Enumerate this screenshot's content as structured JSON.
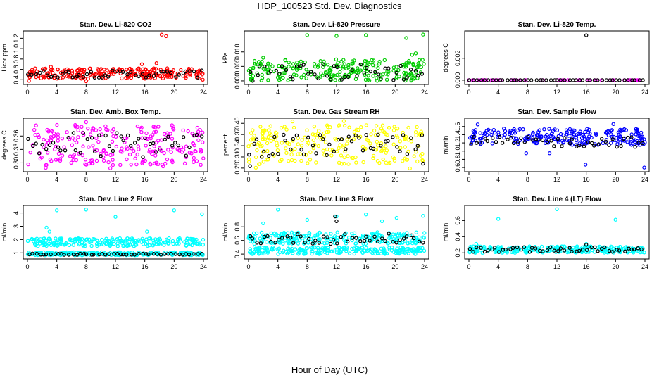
{
  "figure": {
    "title": "HDP_100523  Std. Dev. Diagnostics",
    "xlabel": "Hour of Day (UTC)"
  },
  "chart_data": [
    {
      "type": "scatter",
      "title": "Stan. Dev. Li-820 CO2",
      "xlabel": "",
      "ylabel": "Licor ppm",
      "xlim": [
        0,
        24
      ],
      "xticks": [
        "0",
        "4",
        "8",
        "12",
        "16",
        "20",
        "24"
      ],
      "ylim": [
        0.35,
        1.3
      ],
      "yticks": [
        "0.4",
        "0.6",
        "0.8",
        "1.0",
        "1.2"
      ],
      "color": "#ff0000",
      "series": [
        {
          "name": "all",
          "color": "#ff0000",
          "band": [
            0.42,
            0.62
          ],
          "x": [
            18.3,
            18.9,
            17.6,
            15.6,
            8.0,
            0.2,
            3.2,
            23.9
          ],
          "y": [
            1.27,
            1.24,
            0.72,
            0.7,
            0.37,
            0.38,
            0.65,
            0.4
          ]
        },
        {
          "name": "hourly",
          "color": "#000000",
          "band": [
            0.44,
            0.58
          ],
          "x": [],
          "y": []
        }
      ]
    },
    {
      "type": "scatter",
      "title": "Stan. Dev. Li-820 Pressure",
      "xlabel": "",
      "ylabel": "kPa",
      "xlim": [
        0,
        24
      ],
      "xticks": [
        "0",
        "4",
        "8",
        "12",
        "16",
        "20",
        "24"
      ],
      "ylim": [
        -0.0005,
        0.0165
      ],
      "yticks": [
        "0.000",
        "0.005",
        "0.010"
      ],
      "color": "#00cc00",
      "series": [
        {
          "name": "all",
          "color": "#00cc00",
          "band": [
            0.0,
            0.0075
          ],
          "x": [
            8.0,
            12.0,
            16.0,
            21.5,
            23.8,
            22.3,
            22.8,
            2.0
          ],
          "y": [
            0.0158,
            0.0155,
            0.0158,
            0.0148,
            0.016,
            0.009,
            0.0095,
            0.008
          ]
        },
        {
          "name": "hourly",
          "color": "#000000",
          "band": [
            0.0,
            0.006
          ],
          "x": [],
          "y": []
        }
      ]
    },
    {
      "type": "scatter",
      "title": "Stan. Dev. Li-820 Temp.",
      "xlabel": "",
      "ylabel": "degrees C",
      "xlim": [
        0,
        24
      ],
      "xticks": [
        "0",
        "4",
        "8",
        "12",
        "16",
        "20",
        "24"
      ],
      "ylim": [
        -0.0002,
        0.0043
      ],
      "yticks": [
        "0.000",
        "0.002"
      ],
      "color": "#ff00ff",
      "series": [
        {
          "name": "all",
          "color": "#ff00ff",
          "band": [
            0.0,
            0.0
          ],
          "x": [
            0.0
          ],
          "y": [
            0.0
          ]
        },
        {
          "name": "hourly",
          "color": "#000000",
          "band": [
            0.0,
            0.0
          ],
          "x": [
            16.0
          ],
          "y": [
            0.0041
          ]
        }
      ]
    },
    {
      "type": "scatter",
      "title": "Stan. Dev. Amb. Box Temp.",
      "xlabel": "",
      "ylabel": "degrees C",
      "xlim": [
        0,
        24
      ],
      "xticks": [
        "0",
        "4",
        "8",
        "12",
        "16",
        "20",
        "24"
      ],
      "ylim": [
        0.285,
        0.395
      ],
      "yticks": [
        "0.30",
        "0.33",
        "0.36"
      ],
      "color": "#ff00ff",
      "series": [
        {
          "name": "all",
          "color": "#ff00ff",
          "band": [
            0.295,
            0.385
          ],
          "x": [
            8.0,
            2.5,
            11.3,
            18.5
          ],
          "y": [
            0.391,
            0.289,
            0.288,
            0.292
          ]
        },
        {
          "name": "hourly",
          "color": "#000000",
          "band": [
            0.31,
            0.37
          ],
          "x": [],
          "y": []
        }
      ]
    },
    {
      "type": "scatter",
      "title": "Stan. Dev. Gas Stream RH",
      "xlabel": "",
      "ylabel": "percent",
      "xlim": [
        0,
        24
      ],
      "xticks": [
        "0",
        "4",
        "8",
        "12",
        "16",
        "20",
        "24"
      ],
      "ylim": [
        0.276,
        0.408
      ],
      "yticks": [
        "0.28",
        "0.31",
        "0.34",
        "0.37",
        "0.40"
      ],
      "color": "#ffff00",
      "series": [
        {
          "name": "all",
          "color": "#ffff00",
          "band": [
            0.29,
            0.395
          ],
          "x": [
            6.0,
            13.0,
            1.0,
            22.0
          ],
          "y": [
            0.405,
            0.406,
            0.281,
            0.279
          ]
        },
        {
          "name": "hourly",
          "color": "#000000",
          "band": [
            0.31,
            0.37
          ],
          "x": [
            0.2,
            23.8
          ],
          "y": [
            0.285,
            0.292
          ]
        }
      ]
    },
    {
      "type": "scatter",
      "title": "Stan. Dev. Sample Flow",
      "xlabel": "",
      "ylabel": "ml/min",
      "xlim": [
        0,
        24
      ],
      "xticks": [
        "0",
        "4",
        "8",
        "12",
        "16",
        "20",
        "24"
      ],
      "ylim": [
        0.55,
        1.75
      ],
      "yticks": [
        "0.6",
        "0.8",
        "1.0",
        "1.2",
        "1.4",
        "1.6"
      ],
      "color": "#0000ff",
      "series": [
        {
          "name": "all",
          "color": "#0000ff",
          "band": [
            1.15,
            1.55
          ],
          "x": [
            15.9,
            23.9,
            1.2,
            19.7,
            7.8,
            11.0
          ],
          "y": [
            0.67,
            0.6,
            1.65,
            1.66,
            0.95,
            0.95
          ]
        },
        {
          "name": "hourly",
          "color": "#000000",
          "band": [
            1.1,
            1.35
          ],
          "x": [],
          "y": []
        }
      ]
    },
    {
      "type": "scatter",
      "title": "Stan. Dev. Line 2 Flow",
      "xlabel": "",
      "ylabel": "ml/min",
      "xlim": [
        0,
        24
      ],
      "xticks": [
        "0",
        "4",
        "8",
        "12",
        "16",
        "20",
        "24"
      ],
      "ylim": [
        0.7,
        4.4
      ],
      "yticks": [
        "1",
        "2",
        "3",
        "4"
      ],
      "color": "#00ffff",
      "series": [
        {
          "name": "upper",
          "color": "#00ffff",
          "band": [
            1.5,
            2.1
          ],
          "x": [
            4.0,
            8.0,
            12.0,
            20.0,
            23.8,
            2.6,
            3.0,
            16.3
          ],
          "y": [
            4.2,
            4.25,
            3.7,
            4.2,
            3.9,
            2.9,
            2.6,
            2.6
          ]
        },
        {
          "name": "lower",
          "color": "#00ffff",
          "band": [
            0.82,
            1.05
          ],
          "x": [],
          "y": []
        },
        {
          "name": "hourly",
          "color": "#000000",
          "band": [
            0.85,
            0.95
          ],
          "x": [],
          "y": []
        }
      ]
    },
    {
      "type": "scatter",
      "title": "Stan. Dev. Line 3 Flow",
      "xlabel": "",
      "ylabel": "ml/min",
      "xlim": [
        0,
        24
      ],
      "xticks": [
        "0",
        "4",
        "8",
        "12",
        "16",
        "20",
        "24"
      ],
      "ylim": [
        0.36,
        1.08
      ],
      "yticks": [
        "0.4",
        "0.6",
        "0.8"
      ],
      "color": "#00ffff",
      "series": [
        {
          "name": "upper",
          "color": "#00ffff",
          "band": [
            0.55,
            0.72
          ],
          "x": [
            4.0,
            16.0,
            23.8,
            12.0,
            8.0,
            20.2,
            2.0,
            18.2
          ],
          "y": [
            1.05,
            0.98,
            0.96,
            0.95,
            0.9,
            0.93,
            0.85,
            0.88
          ]
        },
        {
          "name": "lower",
          "color": "#00ffff",
          "band": [
            0.4,
            0.5
          ],
          "x": [],
          "y": []
        },
        {
          "name": "hourly",
          "color": "#000000",
          "band": [
            0.55,
            0.7
          ],
          "x": [
            11.8,
            12.0
          ],
          "y": [
            0.95,
            0.88
          ]
        }
      ]
    },
    {
      "type": "scatter",
      "title": "Stan. Dev. Line 4 (LT) Flow",
      "xlabel": "",
      "ylabel": "ml/min",
      "xlim": [
        0,
        24
      ],
      "xticks": [
        "0",
        "4",
        "8",
        "12",
        "16",
        "20",
        "24"
      ],
      "ylim": [
        0.15,
        0.76
      ],
      "yticks": [
        "0.2",
        "0.4",
        "0.6"
      ],
      "color": "#00ffff",
      "series": [
        {
          "name": "all",
          "color": "#00ffff",
          "band": [
            0.2,
            0.28
          ],
          "x": [
            4.0,
            20.0,
            12.0,
            16.0,
            1.0
          ],
          "y": [
            0.62,
            0.61,
            0.74,
            0.31,
            0.31
          ]
        },
        {
          "name": "hourly",
          "color": "#000000",
          "band": [
            0.21,
            0.27
          ],
          "x": [
            16.0
          ],
          "y": [
            0.3
          ]
        }
      ]
    }
  ]
}
